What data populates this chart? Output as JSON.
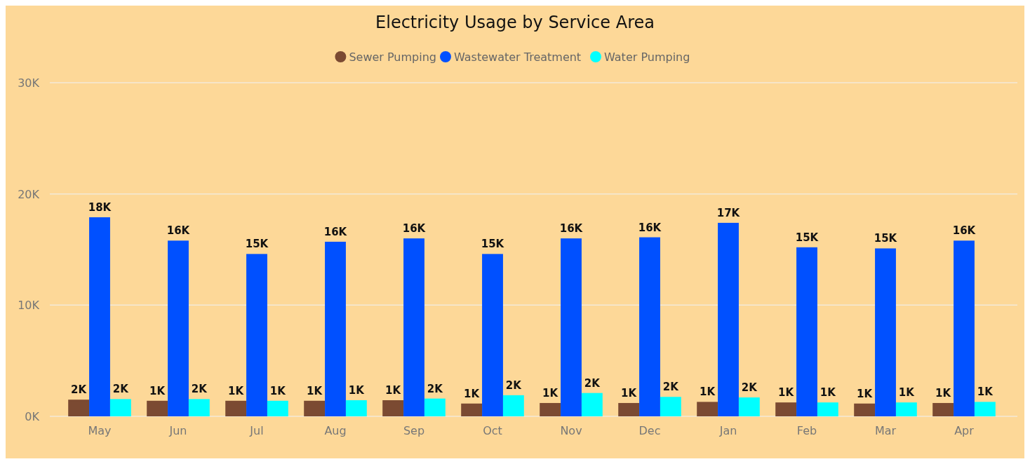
{
  "chart_data": {
    "type": "bar",
    "title": "Electricity Usage by Service Area",
    "categories": [
      "May",
      "Jun",
      "Jul",
      "Aug",
      "Sep",
      "Oct",
      "Nov",
      "Dec",
      "Jan",
      "Feb",
      "Mar",
      "Apr"
    ],
    "series": [
      {
        "name": "Sewer Pumping",
        "color": "#7b4a32",
        "values": [
          1500,
          1400,
          1400,
          1400,
          1450,
          1150,
          1200,
          1200,
          1300,
          1250,
          1150,
          1200
        ],
        "value_labels": [
          "2K",
          "1K",
          "1K",
          "1K",
          "1K",
          "1K",
          "1K",
          "1K",
          "1K",
          "1K",
          "1K",
          "1K"
        ]
      },
      {
        "name": "Wastewater Treatment",
        "color": "#0050ff",
        "values": [
          17900,
          15800,
          14600,
          15700,
          16000,
          14600,
          16000,
          16100,
          17400,
          15200,
          15100,
          15800
        ],
        "value_labels": [
          "18K",
          "16K",
          "15K",
          "16K",
          "16K",
          "15K",
          "16K",
          "16K",
          "17K",
          "15K",
          "15K",
          "16K"
        ]
      },
      {
        "name": "Water Pumping",
        "color": "#00ffff",
        "values": [
          1550,
          1550,
          1400,
          1450,
          1600,
          1900,
          2100,
          1750,
          1700,
          1250,
          1250,
          1300
        ],
        "value_labels": [
          "2K",
          "2K",
          "1K",
          "1K",
          "2K",
          "2K",
          "2K",
          "2K",
          "2K",
          "1K",
          "1K",
          "1K"
        ]
      }
    ],
    "ylim": [
      0,
      30000
    ],
    "yticks": [
      {
        "value": 0,
        "label": "0K"
      },
      {
        "value": 10000,
        "label": "10K"
      },
      {
        "value": 20000,
        "label": "20K"
      },
      {
        "value": 30000,
        "label": "30K"
      }
    ],
    "grid": "y",
    "legend": "top",
    "marker": "circle"
  }
}
